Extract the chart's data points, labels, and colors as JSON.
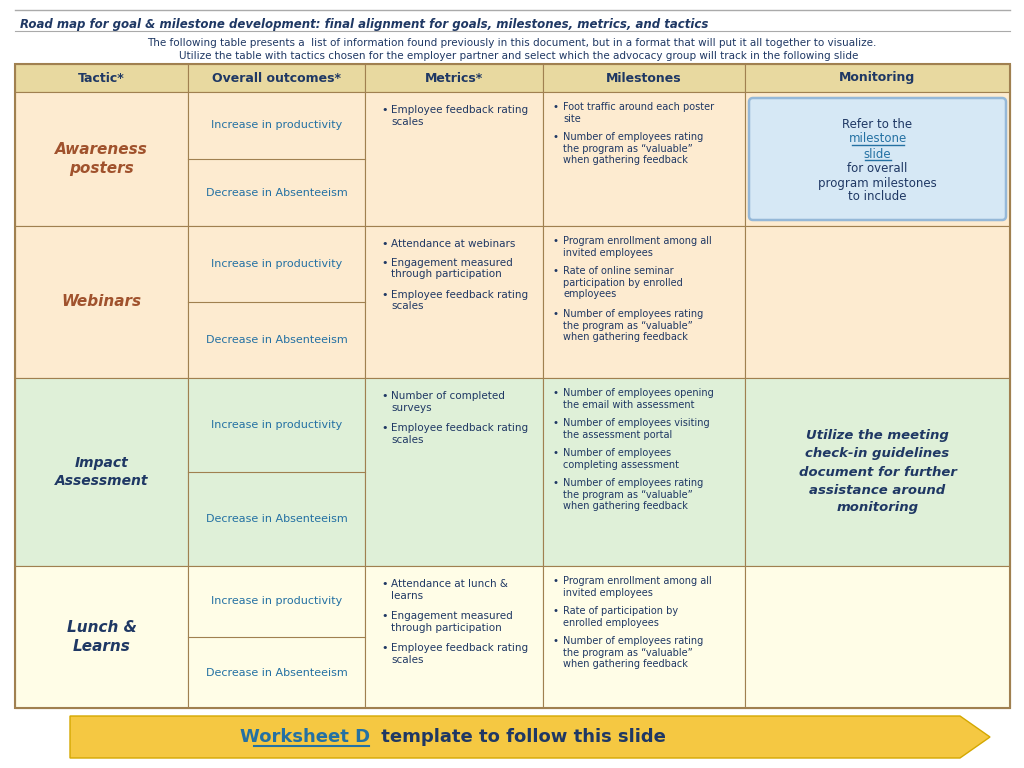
{
  "title": "Road map for goal & milestone development: final alignment for goals, milestones, metrics, and tactics",
  "subtitle1": "The following table presents a  list of information found previously in this document, but in a format that will put it all together to visualize.",
  "subtitle2": "    Utilize the table with tactics chosen for the employer partner and select which the advocacy group will track in the following slide",
  "header_bg": "#E8D9A0",
  "header_text_color": "#1F3864",
  "col_headers": [
    "Tactic*",
    "Overall outcomes*",
    "Metrics*",
    "Milestones",
    "Monitoring"
  ],
  "row_bg_peach": "#FDEBD0",
  "row_bg_green": "#DFF0D8",
  "row_bg_yellow": "#FFFDE7",
  "tactic_color_red": "#A0522D",
  "tactic_color_blue": "#1F3864",
  "outcome_color": "#2471A3",
  "text_color": "#1F3864",
  "grid_color": "#A08050",
  "refer_box_bg": "#D6E8F5",
  "refer_box_border": "#95B8D8",
  "link_color": "#2471A3",
  "monitoring_text": "Utilize the meeting\ncheck-in guidelines\ndocument for further\nassistance around\nmonitoring",
  "arrow_color": "#F5C842",
  "arrow_edge": "#D4A800",
  "bottom_ws": "Worksheet D",
  "bottom_rest": " template to follow this slide",
  "bg": "#FFFFFF"
}
